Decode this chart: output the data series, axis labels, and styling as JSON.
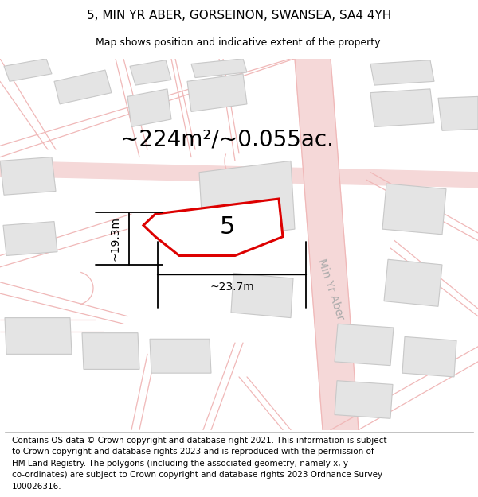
{
  "title": "5, MIN YR ABER, GORSEINON, SWANSEA, SA4 4YH",
  "subtitle": "Map shows position and indicative extent of the property.",
  "footer1": "Contains OS data © Crown copyright and database right 2021. This information is subject",
  "footer2": "to Crown copyright and database rights 2023 and is reproduced with the permission of",
  "footer3": "HM Land Registry. The polygons (including the associated geometry, namely x, y",
  "footer4": "co-ordinates) are subject to Crown copyright and database rights 2023 Ordnance Survey",
  "footer5": "100026316.",
  "area_label": "~224m²/~0.055ac.",
  "width_label": "~23.7m",
  "height_label": "~19.3m",
  "plot_number": "5",
  "street_label": "Min Yr Aber",
  "bg_color": "#f8f8f8",
  "highlight_color": "#dd0000",
  "title_fontsize": 11,
  "subtitle_fontsize": 9,
  "footer_fontsize": 7.5,
  "area_fontsize": 20,
  "dim_fontsize": 10,
  "plot_number_fontsize": 22,
  "street_fontsize": 10
}
